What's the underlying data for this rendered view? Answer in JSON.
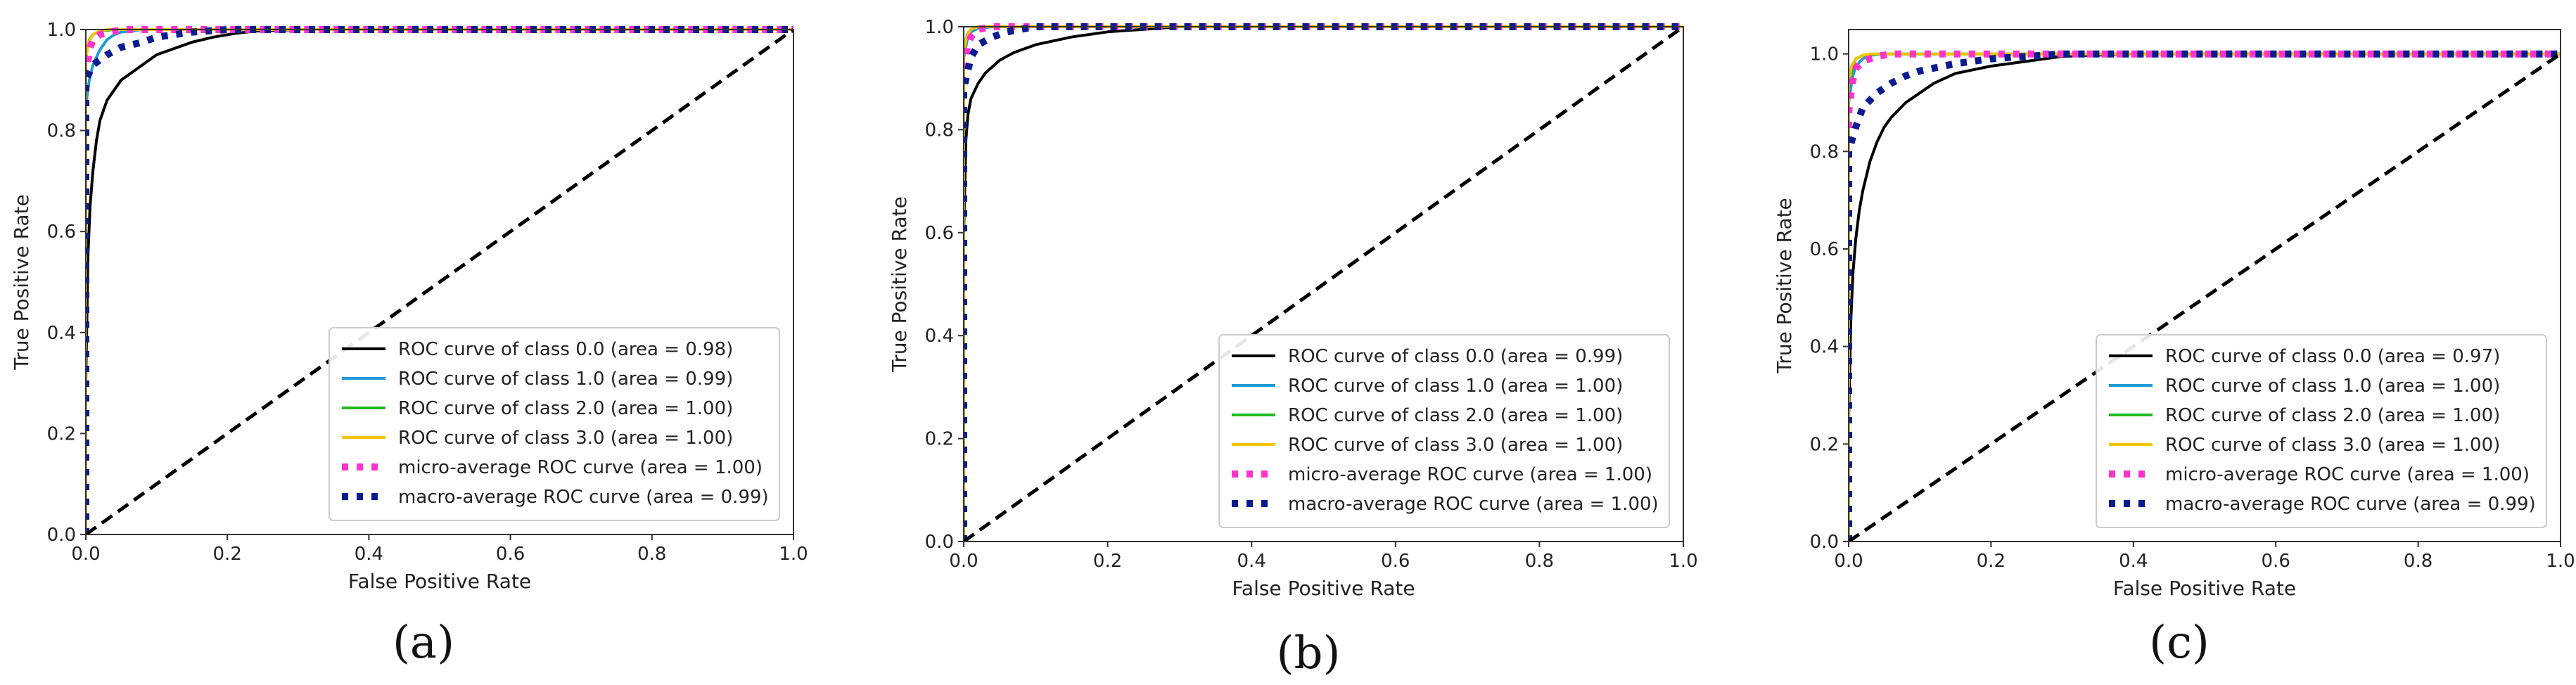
{
  "colors": {
    "class0": "#000000",
    "class1": "#1f9bd7",
    "class2": "#22bb22",
    "class3": "#f5c400",
    "micro": "#ff33cc",
    "macro": "#0a1a8f",
    "chance": "#000000"
  },
  "chart_data": [
    {
      "type": "line",
      "panel_label": "(a)",
      "xlabel": "False Positive Rate",
      "ylabel": "True Positive Rate",
      "xlim": [
        0.0,
        1.0
      ],
      "ylim": [
        0.0,
        1.0
      ],
      "xticks": [
        "0.0",
        "0.2",
        "0.4",
        "0.6",
        "0.8",
        "1.0"
      ],
      "yticks": [
        "0.0",
        "0.2",
        "0.4",
        "0.6",
        "0.8",
        "1.0"
      ],
      "legend_position": "lower-right",
      "series": [
        {
          "name": "ROC curve of class 0.0 (area = 0.98)",
          "style": "solid",
          "color_key": "class0",
          "x": [
            0,
            0,
            0.003,
            0.006,
            0.01,
            0.015,
            0.02,
            0.03,
            0.04,
            0.05,
            0.06,
            0.08,
            0.1,
            0.12,
            0.15,
            0.18,
            0.21,
            0.24,
            0.3,
            0.5,
            1.0
          ],
          "y": [
            0,
            0.3,
            0.55,
            0.65,
            0.72,
            0.78,
            0.82,
            0.86,
            0.88,
            0.9,
            0.91,
            0.93,
            0.95,
            0.96,
            0.975,
            0.985,
            0.992,
            0.997,
            1.0,
            1.0,
            1.0
          ]
        },
        {
          "name": "ROC curve of class 1.0 (area = 0.99)",
          "style": "solid",
          "color_key": "class1",
          "x": [
            0,
            0,
            0.005,
            0.01,
            0.02,
            0.03,
            0.04,
            0.05,
            0.08,
            1.0
          ],
          "y": [
            0,
            0.85,
            0.9,
            0.93,
            0.96,
            0.98,
            0.99,
            0.995,
            1.0,
            1.0
          ]
        },
        {
          "name": "ROC curve of class 2.0 (area = 1.00)",
          "style": "solid",
          "color_key": "class2",
          "x": [
            0,
            0,
            0.005,
            0.01,
            0.02,
            0.04,
            1.0
          ],
          "y": [
            0,
            0.95,
            0.98,
            0.99,
            0.997,
            1.0,
            1.0
          ]
        },
        {
          "name": "ROC curve of class 3.0 (area = 1.00)",
          "style": "solid",
          "color_key": "class3",
          "x": [
            0,
            0,
            0.004,
            0.01,
            0.02,
            0.03,
            1.0
          ],
          "y": [
            0,
            0.94,
            0.975,
            0.99,
            0.997,
            1.0,
            1.0
          ]
        },
        {
          "name": "micro-average ROC curve (area = 1.00)",
          "style": "dotted",
          "color_key": "micro",
          "x": [
            0,
            0,
            0.005,
            0.01,
            0.02,
            0.04,
            0.06,
            1.0
          ],
          "y": [
            0,
            0.9,
            0.96,
            0.98,
            0.99,
            0.997,
            1.0,
            1.0
          ]
        },
        {
          "name": "macro-average ROC curve (area = 0.99)",
          "style": "dotted",
          "color_key": "macro",
          "x": [
            0,
            0,
            0.01,
            0.03,
            0.05,
            0.08,
            0.1,
            0.15,
            0.2,
            1.0
          ],
          "y": [
            0,
            0.9,
            0.93,
            0.95,
            0.965,
            0.975,
            0.985,
            0.995,
            1.0,
            1.0
          ]
        },
        {
          "name": "chance",
          "style": "dashed",
          "color_key": "chance",
          "legend": false,
          "x": [
            0,
            1
          ],
          "y": [
            0,
            1
          ]
        }
      ]
    },
    {
      "type": "line",
      "panel_label": "(b)",
      "xlabel": "False Positive Rate",
      "ylabel": "True Positive Rate",
      "xlim": [
        0.0,
        1.0
      ],
      "ylim": [
        0.0,
        1.0
      ],
      "xticks": [
        "0.0",
        "0.2",
        "0.4",
        "0.6",
        "0.8",
        "1.0"
      ],
      "yticks": [
        "0.0",
        "0.2",
        "0.4",
        "0.6",
        "0.8",
        "1.0"
      ],
      "legend_position": "lower-right",
      "series": [
        {
          "name": "ROC curve of class 0.0 (area = 0.99)",
          "style": "solid",
          "color_key": "class0",
          "x": [
            0,
            0,
            0.003,
            0.006,
            0.01,
            0.02,
            0.03,
            0.05,
            0.07,
            0.1,
            0.15,
            0.2,
            0.25,
            0.3,
            1.0
          ],
          "y": [
            0,
            0.6,
            0.78,
            0.83,
            0.86,
            0.89,
            0.91,
            0.935,
            0.95,
            0.965,
            0.98,
            0.99,
            0.995,
            1.0,
            1.0
          ]
        },
        {
          "name": "ROC curve of class 1.0 (area = 1.00)",
          "style": "solid",
          "color_key": "class1",
          "x": [
            0,
            0,
            0.005,
            0.01,
            0.02,
            0.04,
            1.0
          ],
          "y": [
            0,
            0.94,
            0.975,
            0.99,
            0.997,
            1.0,
            1.0
          ]
        },
        {
          "name": "ROC curve of class 2.0 (area = 1.00)",
          "style": "solid",
          "color_key": "class2",
          "x": [
            0,
            0,
            0.005,
            0.01,
            0.02,
            1.0
          ],
          "y": [
            0,
            0.96,
            0.985,
            0.995,
            1.0,
            1.0
          ]
        },
        {
          "name": "ROC curve of class 3.0 (area = 1.00)",
          "style": "solid",
          "color_key": "class3",
          "x": [
            0,
            0,
            0.004,
            0.01,
            0.02,
            1.0
          ],
          "y": [
            0,
            0.95,
            0.98,
            0.995,
            1.0,
            1.0
          ]
        },
        {
          "name": "micro-average ROC curve (area = 1.00)",
          "style": "dotted",
          "color_key": "micro",
          "x": [
            0,
            0,
            0.005,
            0.01,
            0.02,
            0.04,
            1.0
          ],
          "y": [
            0,
            0.9,
            0.96,
            0.98,
            0.995,
            1.0,
            1.0
          ]
        },
        {
          "name": "macro-average ROC curve (area = 1.00)",
          "style": "dotted",
          "color_key": "macro",
          "x": [
            0,
            0,
            0.01,
            0.02,
            0.04,
            0.06,
            0.1,
            1.0
          ],
          "y": [
            0,
            0.88,
            0.94,
            0.965,
            0.98,
            0.99,
            1.0,
            1.0
          ]
        },
        {
          "name": "chance",
          "style": "dashed",
          "color_key": "chance",
          "legend": false,
          "x": [
            0,
            1
          ],
          "y": [
            0,
            1
          ]
        }
      ]
    },
    {
      "type": "line",
      "panel_label": "(c)",
      "xlabel": "False Positive Rate",
      "ylabel": "True Positive Rate",
      "xlim": [
        0.0,
        1.0
      ],
      "ylim": [
        0.0,
        1.05
      ],
      "xticks": [
        "0.0",
        "0.2",
        "0.4",
        "0.6",
        "0.8",
        "1.0"
      ],
      "yticks": [
        "0.0",
        "0.2",
        "0.4",
        "0.6",
        "0.8",
        "1.0"
      ],
      "legend_position": "lower-right",
      "series": [
        {
          "name": "ROC curve of class 0.0 (area = 0.97)",
          "style": "solid",
          "color_key": "class0",
          "x": [
            0,
            0,
            0.003,
            0.006,
            0.01,
            0.015,
            0.02,
            0.03,
            0.04,
            0.05,
            0.06,
            0.08,
            0.1,
            0.12,
            0.15,
            0.2,
            0.25,
            0.3,
            0.4,
            1.0
          ],
          "y": [
            0,
            0.25,
            0.45,
            0.55,
            0.62,
            0.68,
            0.72,
            0.78,
            0.82,
            0.85,
            0.87,
            0.9,
            0.92,
            0.94,
            0.96,
            0.975,
            0.985,
            0.995,
            1.0,
            1.0
          ]
        },
        {
          "name": "ROC curve of class 1.0 (area = 1.00)",
          "style": "solid",
          "color_key": "class1",
          "x": [
            0,
            0,
            0.005,
            0.01,
            0.02,
            0.03,
            0.05,
            1.0
          ],
          "y": [
            0,
            0.9,
            0.95,
            0.975,
            0.99,
            0.997,
            1.0,
            1.0
          ]
        },
        {
          "name": "ROC curve of class 2.0 (area = 1.00)",
          "style": "solid",
          "color_key": "class2",
          "x": [
            0,
            0,
            0.005,
            0.01,
            0.02,
            0.04,
            1.0
          ],
          "y": [
            0,
            0.93,
            0.97,
            0.99,
            0.997,
            1.0,
            1.0
          ]
        },
        {
          "name": "ROC curve of class 3.0 (area = 1.00)",
          "style": "solid",
          "color_key": "class3",
          "x": [
            0,
            0,
            0.004,
            0.01,
            0.02,
            0.03,
            1.0
          ],
          "y": [
            0,
            0.94,
            0.975,
            0.99,
            0.997,
            1.0,
            1.0
          ]
        },
        {
          "name": "micro-average ROC curve (area = 1.00)",
          "style": "dotted",
          "color_key": "micro",
          "x": [
            0,
            0,
            0.005,
            0.01,
            0.02,
            0.04,
            0.06,
            1.0
          ],
          "y": [
            0,
            0.88,
            0.94,
            0.97,
            0.985,
            0.995,
            1.0,
            1.0
          ]
        },
        {
          "name": "macro-average ROC curve (area = 0.99)",
          "style": "dotted",
          "color_key": "macro",
          "x": [
            0,
            0,
            0.01,
            0.02,
            0.04,
            0.06,
            0.08,
            0.1,
            0.15,
            0.2,
            0.3,
            1.0
          ],
          "y": [
            0,
            0.8,
            0.85,
            0.89,
            0.92,
            0.94,
            0.955,
            0.965,
            0.98,
            0.99,
            1.0,
            1.0
          ]
        },
        {
          "name": "chance",
          "style": "dashed",
          "color_key": "chance",
          "legend": false,
          "x": [
            0,
            1
          ],
          "y": [
            0,
            1
          ]
        }
      ]
    }
  ]
}
